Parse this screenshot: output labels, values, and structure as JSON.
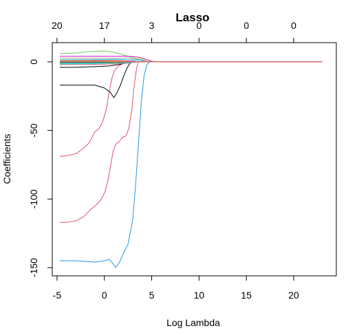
{
  "chart_data": {
    "type": "line",
    "title": "Lasso",
    "xlabel": "Log Lambda",
    "ylabel": "Coefficients",
    "xlim": [
      -5.5,
      24.5
    ],
    "ylim": [
      -156,
      14
    ],
    "x_ticks": [
      -5,
      0,
      5,
      10,
      15,
      20
    ],
    "x_tick_labels": [
      "-5",
      "0",
      "5",
      "10",
      "15",
      "20"
    ],
    "y_ticks": [
      -150,
      -100,
      -50,
      0
    ],
    "y_tick_labels": [
      "-150",
      "-100",
      "-50",
      "0"
    ],
    "top_ticks": [
      -5,
      0,
      5,
      10,
      15,
      20
    ],
    "top_tick_labels": [
      "20",
      "17",
      "3",
      "0",
      "0",
      "0"
    ],
    "grid": false,
    "legend": "none",
    "series": [
      {
        "color": "#2297e6",
        "points": [
          [
            -4.7,
            -145
          ],
          [
            -3,
            -145
          ],
          [
            -1,
            -146
          ],
          [
            0,
            -145
          ],
          [
            0.5,
            -144
          ],
          [
            0.8,
            -146
          ],
          [
            1.2,
            -150
          ],
          [
            1.6,
            -146
          ],
          [
            2.0,
            -140
          ],
          [
            2.5,
            -133
          ],
          [
            3.0,
            -115
          ],
          [
            3.3,
            -90
          ],
          [
            3.6,
            -60
          ],
          [
            3.9,
            -30
          ],
          [
            4.2,
            -10
          ],
          [
            4.5,
            -2
          ],
          [
            4.8,
            0
          ],
          [
            23,
            0
          ]
        ]
      },
      {
        "color": "#df536b",
        "points": [
          [
            -4.7,
            -117
          ],
          [
            -4,
            -117
          ],
          [
            -3,
            -116
          ],
          [
            -2.2,
            -113
          ],
          [
            -1.5,
            -108
          ],
          [
            -0.8,
            -104
          ],
          [
            -0.3,
            -100
          ],
          [
            0.1,
            -94
          ],
          [
            0.4,
            -86
          ],
          [
            0.7,
            -74
          ],
          [
            0.9,
            -66
          ],
          [
            1.2,
            -60
          ],
          [
            1.6,
            -58
          ],
          [
            1.9,
            -55
          ],
          [
            2.3,
            -54
          ],
          [
            2.6,
            -48
          ],
          [
            2.9,
            -35
          ],
          [
            3.1,
            -20
          ],
          [
            3.4,
            -5
          ],
          [
            3.6,
            0
          ],
          [
            23,
            0
          ]
        ]
      },
      {
        "color": "#df536b",
        "points": [
          [
            -4.7,
            -69
          ],
          [
            -4,
            -68.5
          ],
          [
            -3,
            -67
          ],
          [
            -2.2,
            -63
          ],
          [
            -1.6,
            -59
          ],
          [
            -1,
            -51
          ],
          [
            -0.6,
            -49
          ],
          [
            -0.2,
            -44
          ],
          [
            0.2,
            -35
          ],
          [
            0.5,
            -22
          ],
          [
            0.8,
            -12
          ],
          [
            1.1,
            -6
          ],
          [
            1.5,
            -3
          ],
          [
            2.0,
            -1
          ],
          [
            2.5,
            0
          ],
          [
            23,
            0
          ]
        ]
      },
      {
        "color": "#000000",
        "points": [
          [
            -4.7,
            -17
          ],
          [
            -3,
            -17
          ],
          [
            -1,
            -17
          ],
          [
            0,
            -19
          ],
          [
            0.6,
            -22
          ],
          [
            1.0,
            -26
          ],
          [
            1.3,
            -23
          ],
          [
            1.7,
            -17
          ],
          [
            2.0,
            -11
          ],
          [
            2.3,
            -6
          ],
          [
            2.6,
            -2
          ],
          [
            2.9,
            0
          ],
          [
            23,
            0
          ]
        ]
      },
      {
        "color": "#000000",
        "points": [
          [
            -4.7,
            -4
          ],
          [
            -3,
            -4
          ],
          [
            -1,
            -3.5
          ],
          [
            0.5,
            -3
          ],
          [
            1.5,
            -2
          ],
          [
            2.2,
            -1
          ],
          [
            2.8,
            0
          ],
          [
            23,
            0
          ]
        ]
      },
      {
        "color": "#61d04f",
        "points": [
          [
            -4.7,
            6
          ],
          [
            -3,
            6.5
          ],
          [
            -1.5,
            7.5
          ],
          [
            0,
            8
          ],
          [
            1.0,
            7
          ],
          [
            2.0,
            5
          ],
          [
            3.0,
            3
          ],
          [
            4.0,
            1.5
          ],
          [
            4.8,
            0
          ],
          [
            23,
            0
          ]
        ]
      },
      {
        "color": "#cd0bbc",
        "points": [
          [
            -4.7,
            4
          ],
          [
            -3,
            4
          ],
          [
            -1,
            4
          ],
          [
            1,
            4
          ],
          [
            2.5,
            4
          ],
          [
            3.5,
            3.5
          ],
          [
            4.3,
            2
          ],
          [
            5.0,
            0.5
          ],
          [
            5.4,
            0
          ],
          [
            23,
            0
          ]
        ]
      },
      {
        "color": "#28e2e5",
        "points": [
          [
            -4.7,
            1.5
          ],
          [
            -2,
            1.5
          ],
          [
            1,
            1.8
          ],
          [
            3,
            1.5
          ],
          [
            4.2,
            0.5
          ],
          [
            4.6,
            0
          ],
          [
            23,
            0
          ]
        ]
      },
      {
        "color": "#9e9e9e",
        "points": [
          [
            -4.7,
            2.5
          ],
          [
            -2,
            2.5
          ],
          [
            1,
            2.5
          ],
          [
            2.5,
            2.5
          ],
          [
            3.8,
            1.5
          ],
          [
            4.5,
            0
          ],
          [
            23,
            0
          ]
        ]
      },
      {
        "color": "#f5c710",
        "points": [
          [
            -4.7,
            -1
          ],
          [
            -1,
            -0.8
          ],
          [
            1.5,
            -0.5
          ],
          [
            3,
            -0.2
          ],
          [
            3.5,
            0
          ],
          [
            23,
            0
          ]
        ]
      },
      {
        "color": "#2297e6",
        "points": [
          [
            -4.7,
            -1
          ],
          [
            -1,
            -1
          ],
          [
            1.5,
            -1
          ],
          [
            3,
            -0.5
          ],
          [
            3.7,
            0
          ],
          [
            23,
            0
          ]
        ]
      },
      {
        "color": "#2297e6",
        "points": [
          [
            -4.7,
            0.5
          ],
          [
            -1,
            0.5
          ],
          [
            1.5,
            0.5
          ],
          [
            3,
            0.3
          ],
          [
            3.8,
            0
          ],
          [
            23,
            0
          ]
        ]
      },
      {
        "color": "#df536b",
        "points": [
          [
            -4.7,
            -2
          ],
          [
            -1,
            -1.8
          ],
          [
            1,
            -1.5
          ],
          [
            2.5,
            -1
          ],
          [
            3.4,
            0
          ],
          [
            23,
            0
          ]
        ]
      },
      {
        "color": "#61d04f",
        "points": [
          [
            -4.7,
            -0.5
          ],
          [
            0,
            -0.5
          ],
          [
            2,
            -0.3
          ],
          [
            3,
            0
          ],
          [
            23,
            0
          ]
        ]
      },
      {
        "color": "#000000",
        "points": [
          [
            -4.7,
            -0.2
          ],
          [
            0,
            -0.2
          ],
          [
            2,
            -0.1
          ],
          [
            3.1,
            0
          ],
          [
            23,
            0
          ]
        ]
      },
      {
        "color": "#28e2e5",
        "points": [
          [
            -4.7,
            -1.5
          ],
          [
            -1,
            -1.3
          ],
          [
            1.5,
            -1
          ],
          [
            2.8,
            -0.5
          ],
          [
            3.2,
            0
          ],
          [
            23,
            0
          ]
        ]
      },
      {
        "color": "#cd0bbc",
        "points": [
          [
            -4.7,
            1
          ],
          [
            -1,
            1.2
          ],
          [
            1.5,
            1
          ],
          [
            3,
            0.5
          ],
          [
            3.8,
            0
          ],
          [
            23,
            0
          ]
        ]
      },
      {
        "color": "#9e9e9e",
        "points": [
          [
            -4.7,
            0.2
          ],
          [
            0,
            0.2
          ],
          [
            2,
            0.2
          ],
          [
            3.5,
            0
          ],
          [
            23,
            0
          ]
        ]
      },
      {
        "color": "#f5c710",
        "points": [
          [
            -4.7,
            0.8
          ],
          [
            0,
            0.8
          ],
          [
            2,
            0.5
          ],
          [
            3.2,
            0
          ],
          [
            23,
            0
          ]
        ]
      },
      {
        "color": "#df536b",
        "points": [
          [
            -4.7,
            0
          ],
          [
            23,
            0
          ]
        ]
      }
    ]
  }
}
